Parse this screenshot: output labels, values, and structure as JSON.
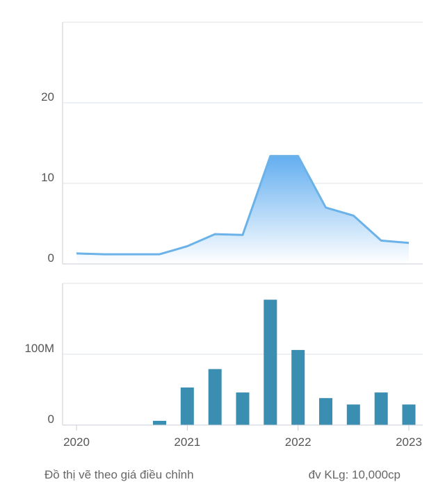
{
  "chart_data": [
    {
      "type": "area",
      "title": "",
      "x": [
        "2020-01",
        "2020-04",
        "2020-07",
        "2020-10",
        "2021-01",
        "2021-04",
        "2021-07",
        "2021-10",
        "2022-01",
        "2022-04",
        "2022-07",
        "2022-10",
        "2023-01"
      ],
      "values": [
        1.3,
        1.2,
        1.2,
        1.2,
        2.2,
        3.7,
        3.6,
        13.4,
        13.4,
        7.0,
        6.0,
        2.9,
        2.6
      ],
      "ylim": [
        0,
        30
      ],
      "yticks": [
        "0",
        "10",
        "20"
      ],
      "colors": {
        "line": "#6bb2e8",
        "fill_top": "#63aef0",
        "fill_bottom": "#ffffff"
      }
    },
    {
      "type": "bar",
      "title": "",
      "x": [
        "2020-01",
        "2020-04",
        "2020-07",
        "2020-10",
        "2021-01",
        "2021-04",
        "2021-07",
        "2021-10",
        "2022-01",
        "2022-04",
        "2022-07",
        "2022-10",
        "2023-01"
      ],
      "values": [
        0,
        0,
        0,
        6000000,
        53000000,
        79000000,
        46000000,
        177000000,
        106000000,
        38000000,
        29000000,
        46000000,
        29000000
      ],
      "ylim": [
        0,
        200000000
      ],
      "yticks": [
        "0",
        "100M"
      ],
      "xticks": [
        "2020",
        "2021",
        "2022",
        "2023"
      ],
      "colors": {
        "bar": "#3a8eb1"
      }
    }
  ],
  "footer": {
    "left": "Đồ thị vẽ theo giá điều chỉnh",
    "right": "đv KLg: 10,000cp"
  }
}
